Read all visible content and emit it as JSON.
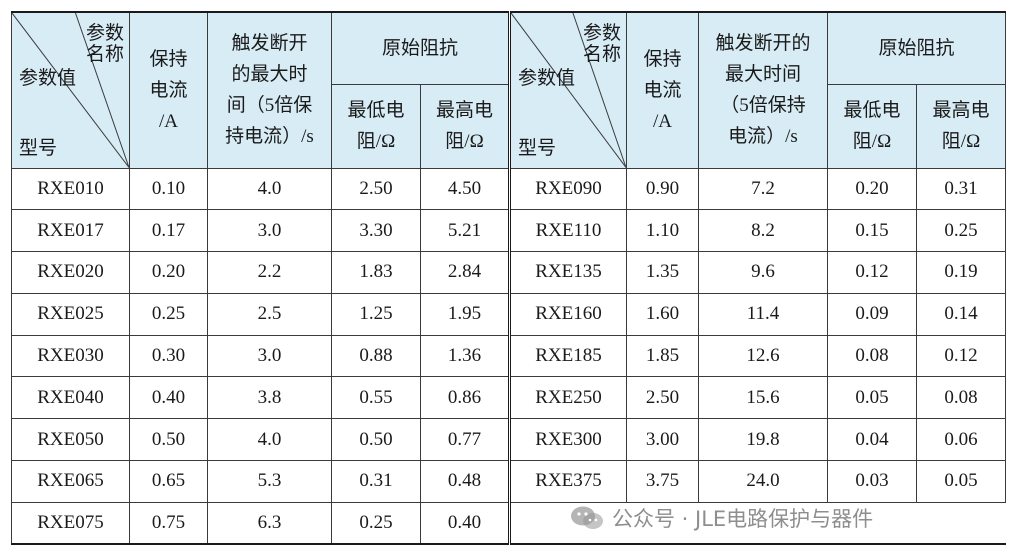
{
  "header": {
    "corner_top_line1": "参数",
    "corner_top_line2": "名称",
    "corner_mid": "参数值",
    "corner_bottom": "型号",
    "hold_current": [
      "保持",
      "电流",
      "/A"
    ],
    "trip_time_left": [
      "触发断开",
      "的最大时",
      "间（5倍保",
      "持电流）/s"
    ],
    "trip_time_right": [
      "触发断开的",
      "最大时间",
      "（5倍保持",
      "电流）/s"
    ],
    "impedance": "原始阻抗",
    "min_res": [
      "最低电",
      "阻/Ω"
    ],
    "max_res": [
      "最高电",
      "阻/Ω"
    ]
  },
  "rows_left": [
    {
      "model": "RXE010",
      "hold": "0.10",
      "trip": "4.0",
      "rmin": "2.50",
      "rmax": "4.50"
    },
    {
      "model": "RXE017",
      "hold": "0.17",
      "trip": "3.0",
      "rmin": "3.30",
      "rmax": "5.21"
    },
    {
      "model": "RXE020",
      "hold": "0.20",
      "trip": "2.2",
      "rmin": "1.83",
      "rmax": "2.84"
    },
    {
      "model": "RXE025",
      "hold": "0.25",
      "trip": "2.5",
      "rmin": "1.25",
      "rmax": "1.95"
    },
    {
      "model": "RXE030",
      "hold": "0.30",
      "trip": "3.0",
      "rmin": "0.88",
      "rmax": "1.36"
    },
    {
      "model": "RXE040",
      "hold": "0.40",
      "trip": "3.8",
      "rmin": "0.55",
      "rmax": "0.86"
    },
    {
      "model": "RXE050",
      "hold": "0.50",
      "trip": "4.0",
      "rmin": "0.50",
      "rmax": "0.77"
    },
    {
      "model": "RXE065",
      "hold": "0.65",
      "trip": "5.3",
      "rmin": "0.31",
      "rmax": "0.48"
    },
    {
      "model": "RXE075",
      "hold": "0.75",
      "trip": "6.3",
      "rmin": "0.25",
      "rmax": "0.40"
    }
  ],
  "rows_right": [
    {
      "model": "RXE090",
      "hold": "0.90",
      "trip": "7.2",
      "rmin": "0.20",
      "rmax": "0.31"
    },
    {
      "model": "RXE110",
      "hold": "1.10",
      "trip": "8.2",
      "rmin": "0.15",
      "rmax": "0.25"
    },
    {
      "model": "RXE135",
      "hold": "1.35",
      "trip": "9.6",
      "rmin": "0.12",
      "rmax": "0.19"
    },
    {
      "model": "RXE160",
      "hold": "1.60",
      "trip": "11.4",
      "rmin": "0.09",
      "rmax": "0.14"
    },
    {
      "model": "RXE185",
      "hold": "1.85",
      "trip": "12.6",
      "rmin": "0.08",
      "rmax": "0.12"
    },
    {
      "model": "RXE250",
      "hold": "2.50",
      "trip": "15.6",
      "rmin": "0.05",
      "rmax": "0.08"
    },
    {
      "model": "RXE300",
      "hold": "3.00",
      "trip": "19.8",
      "rmin": "0.04",
      "rmax": "0.06"
    },
    {
      "model": "RXE375",
      "hold": "3.75",
      "trip": "24.0",
      "rmin": "0.03",
      "rmax": "0.05"
    }
  ],
  "watermark": {
    "text": "公众号 · JLE电路保护与器件",
    "icon": "wechat-logo-icon"
  },
  "colors": {
    "header_bg": "#d8ecf6",
    "border": "#3a3a3a",
    "text": "#1a1a1a",
    "watermark": "#6e6e6e"
  }
}
